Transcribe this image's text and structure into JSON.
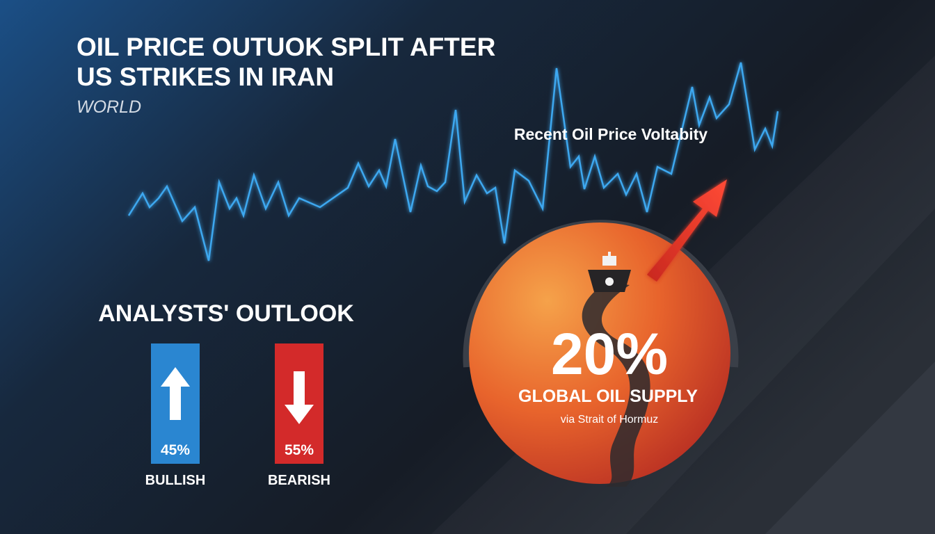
{
  "header": {
    "title_lines": [
      "OIL PRICE OUTUOK SPLIT AFTER",
      "US STRIKES IN IRAN"
    ],
    "category": "WORLD"
  },
  "volatility": {
    "label": "Recent Oil Price Voltabity"
  },
  "outlook": {
    "title": "ANALYSTS' OUTLOOK",
    "items": [
      {
        "label": "BULLISH",
        "value": "45%"
      },
      {
        "label": "BEARISH",
        "value": "55%"
      }
    ]
  },
  "supply": {
    "value": "20%",
    "label": "GLOBAL OIL SUPPLY",
    "note": "via Strait of Hormuz"
  }
}
